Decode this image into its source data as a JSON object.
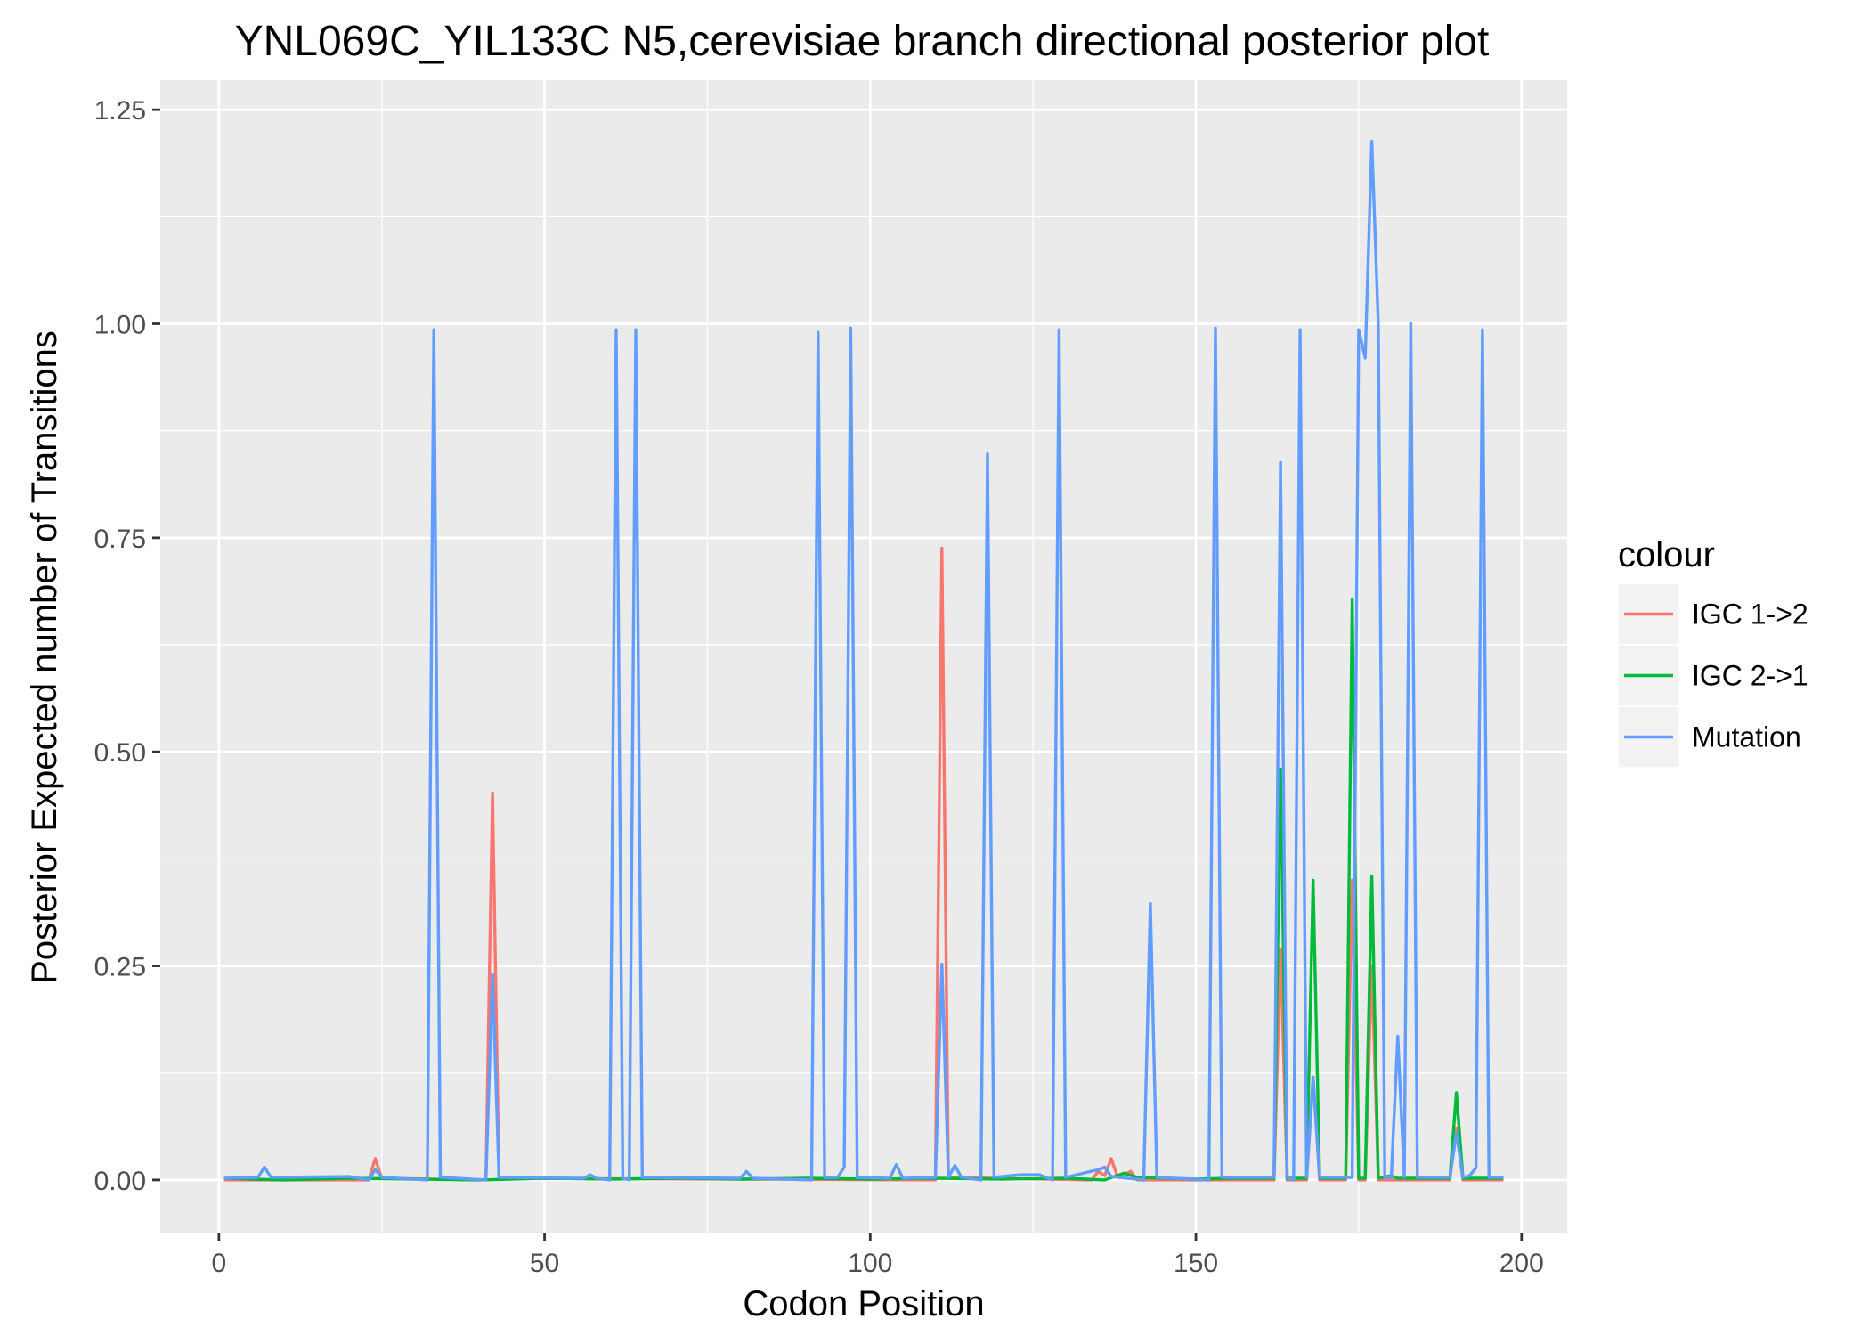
{
  "chart_data": {
    "type": "line",
    "title": "YNL069C_YIL133C N5,cerevisiae branch directional posterior plot",
    "xlabel": "Codon Position",
    "ylabel": "Posterior Expected number of Transitions",
    "xlim": [
      -9,
      207
    ],
    "ylim": [
      -0.0625,
      1.2845
    ],
    "x_ticks": [
      0,
      50,
      100,
      150,
      200
    ],
    "x_tick_labels": [
      "0",
      "50",
      "100",
      "150",
      "200"
    ],
    "y_ticks": [
      0,
      0.25,
      0.5,
      0.75,
      1.0,
      1.25
    ],
    "y_tick_labels": [
      "0.00",
      "0.25",
      "0.50",
      "0.75",
      "1.00",
      "1.25"
    ],
    "grid": true,
    "legend": {
      "title": "colour",
      "position": "right"
    },
    "series": [
      {
        "name": "IGC 1->2",
        "color": "#F8766D",
        "points": [
          [
            1,
            0
          ],
          [
            23,
            0
          ],
          [
            24,
            0.025
          ],
          [
            25,
            0.002
          ],
          [
            41,
            0
          ],
          [
            42,
            0.452
          ],
          [
            43,
            0.002
          ],
          [
            110,
            0
          ],
          [
            111,
            0.738
          ],
          [
            112,
            0.003
          ],
          [
            134,
            0
          ],
          [
            135,
            0.01
          ],
          [
            136,
            0.005
          ],
          [
            137,
            0.025
          ],
          [
            138,
            0.003
          ],
          [
            140,
            0.01
          ],
          [
            141,
            0
          ],
          [
            162,
            0
          ],
          [
            163,
            0.27
          ],
          [
            164,
            0
          ],
          [
            167,
            0
          ],
          [
            168,
            0.12
          ],
          [
            169,
            0
          ],
          [
            173,
            0
          ],
          [
            174,
            0.35
          ],
          [
            175,
            0
          ],
          [
            176,
            0
          ],
          [
            177,
            0.25
          ],
          [
            178,
            0
          ],
          [
            189,
            0
          ],
          [
            190,
            0.06
          ],
          [
            191,
            0
          ],
          [
            197,
            0
          ]
        ]
      },
      {
        "name": "IGC 2->1",
        "color": "#00BA38",
        "points": [
          [
            1,
            0.002
          ],
          [
            10,
            0.0
          ],
          [
            20,
            0.002
          ],
          [
            30,
            0.001
          ],
          [
            40,
            0.0
          ],
          [
            50,
            0.002
          ],
          [
            60,
            0.001
          ],
          [
            70,
            0.002
          ],
          [
            80,
            0.001
          ],
          [
            90,
            0.002
          ],
          [
            100,
            0.001
          ],
          [
            110,
            0.002
          ],
          [
            120,
            0.001
          ],
          [
            130,
            0.002
          ],
          [
            136,
            0.0
          ],
          [
            139,
            0.008
          ],
          [
            141,
            0.003
          ],
          [
            150,
            0.001
          ],
          [
            155,
            0.002
          ],
          [
            162,
            0.002
          ],
          [
            163,
            0.48
          ],
          [
            164,
            0.002
          ],
          [
            167,
            0.002
          ],
          [
            168,
            0.35
          ],
          [
            169,
            0.002
          ],
          [
            173,
            0.002
          ],
          [
            174,
            0.678
          ],
          [
            175,
            0.002
          ],
          [
            176,
            0.002
          ],
          [
            177,
            0.355
          ],
          [
            178,
            0.002
          ],
          [
            180,
            0.005
          ],
          [
            181,
            0.002
          ],
          [
            189,
            0.002
          ],
          [
            190,
            0.102
          ],
          [
            191,
            0.002
          ],
          [
            197,
            0.002
          ]
        ]
      },
      {
        "name": "Mutation",
        "color": "#619CFF",
        "points": [
          [
            1,
            0.002
          ],
          [
            6,
            0.003
          ],
          [
            7,
            0.015
          ],
          [
            8,
            0.003
          ],
          [
            20,
            0.004
          ],
          [
            23,
            0
          ],
          [
            24,
            0.012
          ],
          [
            25,
            0.003
          ],
          [
            32,
            0
          ],
          [
            33,
            0.993
          ],
          [
            34,
            0.003
          ],
          [
            41,
            0
          ],
          [
            42,
            0.24
          ],
          [
            43,
            0.003
          ],
          [
            56,
            0.002
          ],
          [
            57,
            0.006
          ],
          [
            58,
            0.002
          ],
          [
            60,
            0
          ],
          [
            61,
            0.993
          ],
          [
            62,
            0.002
          ],
          [
            63,
            0
          ],
          [
            64,
            0.993
          ],
          [
            65,
            0.003
          ],
          [
            80,
            0.002
          ],
          [
            81,
            0.01
          ],
          [
            82,
            0.002
          ],
          [
            91,
            0
          ],
          [
            92,
            0.99
          ],
          [
            93,
            0.003
          ],
          [
            95,
            0.003
          ],
          [
            96,
            0.015
          ],
          [
            97,
            0.995
          ],
          [
            98,
            0.003
          ],
          [
            103,
            0.002
          ],
          [
            104,
            0.018
          ],
          [
            105,
            0.002
          ],
          [
            110,
            0.003
          ],
          [
            111,
            0.252
          ],
          [
            112,
            0.003
          ],
          [
            113,
            0.017
          ],
          [
            114,
            0.003
          ],
          [
            117,
            0
          ],
          [
            118,
            0.848
          ],
          [
            119,
            0.003
          ],
          [
            123,
            0.006
          ],
          [
            126,
            0.006
          ],
          [
            128,
            0
          ],
          [
            129,
            0.993
          ],
          [
            130,
            0.003
          ],
          [
            135,
            0.012
          ],
          [
            136,
            0.015
          ],
          [
            137,
            0.004
          ],
          [
            142,
            0
          ],
          [
            143,
            0.323
          ],
          [
            144,
            0.003
          ],
          [
            152,
            0
          ],
          [
            153,
            0.995
          ],
          [
            154,
            0.003
          ],
          [
            162,
            0.003
          ],
          [
            163,
            0.838
          ],
          [
            164,
            0.003
          ],
          [
            165,
            0
          ],
          [
            166,
            0.993
          ],
          [
            167,
            0.003
          ],
          [
            168,
            0.12
          ],
          [
            169,
            0.003
          ],
          [
            174,
            0.003
          ],
          [
            175,
            0.993
          ],
          [
            176,
            0.96
          ],
          [
            177,
            1.213
          ],
          [
            178,
            1.0
          ],
          [
            179,
            0.003
          ],
          [
            180,
            0.003
          ],
          [
            181,
            0.168
          ],
          [
            182,
            0.003
          ],
          [
            183,
            1.0
          ],
          [
            184,
            0.003
          ],
          [
            189,
            0.003
          ],
          [
            190,
            0.055
          ],
          [
            191,
            0.003
          ],
          [
            192,
            0.005
          ],
          [
            193,
            0.014
          ],
          [
            194,
            0.993
          ],
          [
            195,
            0.003
          ],
          [
            197,
            0.003
          ]
        ]
      }
    ]
  }
}
